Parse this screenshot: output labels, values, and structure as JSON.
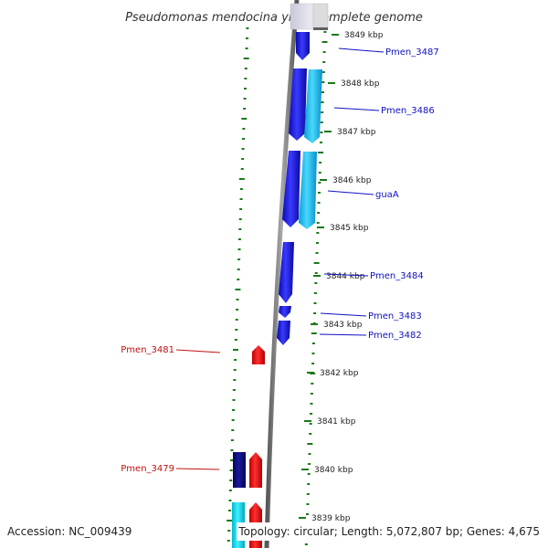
{
  "title": "Pseudomonas mendocina ymp, complete genome",
  "accession": "Accession: NC_009439",
  "topology": "Topology: circular; Length: 5,072,807 bp; Genes: 4,675",
  "colors": {
    "forward_gene": "#1010e0",
    "forward_gene_alt": "#10b8e8",
    "reverse_gene": "#e81010",
    "reverse_gene_dark": "#0a0a80",
    "reverse_gene_cyan": "#10d8e8",
    "backbone": "#7a7a7a",
    "gc_dots": "#1a7a1a",
    "forward_label": "#1010c0",
    "reverse_label": "#c01010"
  },
  "kbp_ticks": [
    "3849 kbp",
    "3848 kbp",
    "3847 kbp",
    "3846 kbp",
    "3845 kbp",
    "3844 kbp",
    "3843 kbp",
    "3842 kbp",
    "3841 kbp",
    "3840 kbp",
    "3839 kbp"
  ],
  "forward_labels": [
    "Pmen_3487",
    "Pmen_3486",
    "guaA",
    "Pmen_3484",
    "Pmen_3483",
    "Pmen_3482"
  ],
  "reverse_labels": [
    "Pmen_3481",
    "Pmen_3479"
  ]
}
